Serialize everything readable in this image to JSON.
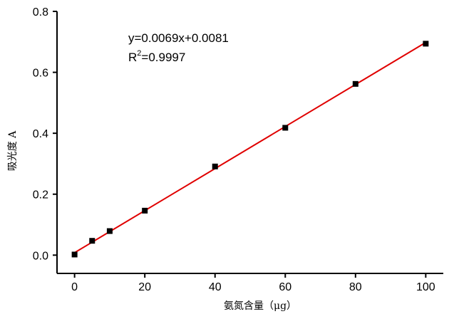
{
  "chart_data": {
    "type": "scatter",
    "xlabel": "氨氮含量（μg）",
    "ylabel": "吸光度 A",
    "xlim": [
      -5,
      105
    ],
    "ylim": [
      -0.06,
      0.8
    ],
    "xticks": [
      0,
      20,
      40,
      60,
      80,
      100
    ],
    "xtick_labels": [
      "0",
      "20",
      "40",
      "60",
      "80",
      "100"
    ],
    "yticks": [
      0.0,
      0.2,
      0.4,
      0.6,
      0.8
    ],
    "ytick_labels": [
      "0.0",
      "0.2",
      "0.4",
      "0.6",
      "0.8"
    ],
    "grid": false,
    "series": [
      {
        "x": [
          0,
          5,
          10,
          20,
          40,
          60,
          80,
          100
        ],
        "y": [
          0.002,
          0.047,
          0.079,
          0.146,
          0.291,
          0.418,
          0.562,
          0.694
        ]
      }
    ],
    "fit": {
      "slope": 0.0069,
      "intercept": 0.0081,
      "x_range": [
        0,
        100
      ]
    },
    "annotations": {
      "equation": "y=0.0069x+0.0081",
      "r2_prefix": "R",
      "r2_sup": "2",
      "r2_value": "=0.9997"
    },
    "colors": {
      "fit_line": "#e00000",
      "points": "#000000",
      "axes": "#000000"
    }
  }
}
